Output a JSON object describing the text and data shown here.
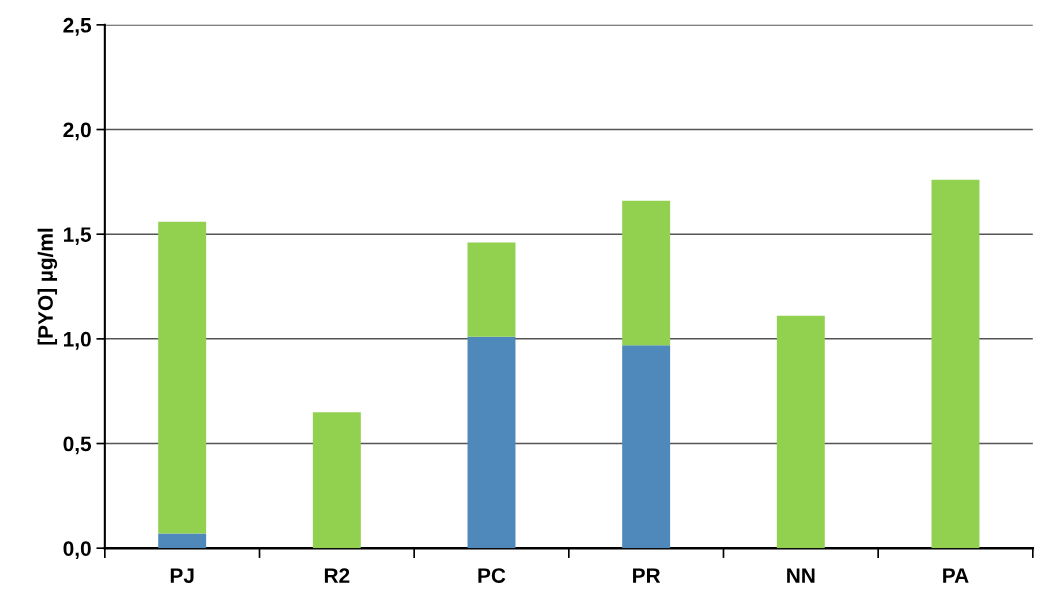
{
  "chart_data": {
    "type": "bar",
    "stacked": true,
    "ylabel": "[PYO] µg/ml",
    "categories": [
      "PJ",
      "R2",
      "PC",
      "PR",
      "NN",
      "PA"
    ],
    "series": [
      {
        "color": "#4f88bb",
        "values": [
          0.07,
          0,
          1.01,
          0.97,
          0,
          0
        ]
      },
      {
        "color": "#92d050",
        "values": [
          1.49,
          0.65,
          0.45,
          0.69,
          1.11,
          1.76
        ]
      }
    ],
    "ylim": [
      0,
      2.5
    ],
    "yticks": [
      {
        "value": 0,
        "label": "0,0"
      },
      {
        "value": 0.5,
        "label": "0,5"
      },
      {
        "value": 1.0,
        "label": "1,0"
      },
      {
        "value": 1.5,
        "label": "1,5"
      },
      {
        "value": 2.0,
        "label": "2,0"
      },
      {
        "value": 2.5,
        "label": "2,5"
      }
    ],
    "grid": "y"
  }
}
